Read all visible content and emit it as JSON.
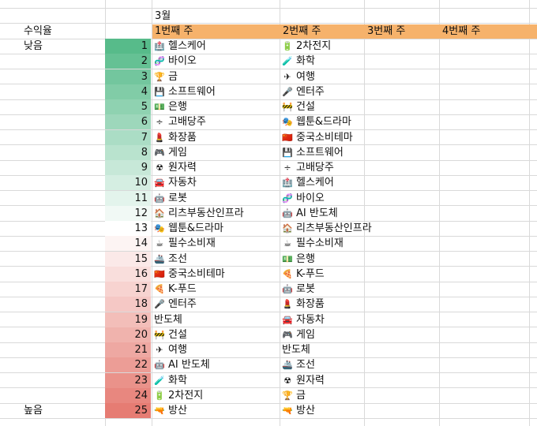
{
  "month": "3월",
  "left_label": "수익율",
  "low_label": "낮음",
  "high_label": "높음",
  "weeks": [
    "1번째 주",
    "2번째 주",
    "3번째 주",
    "4번째 주"
  ],
  "heat_colors": {
    "low": "#57bb8a",
    "mid": "#ffffff",
    "high": "#e67c73"
  },
  "rows": [
    {
      "rank": "1",
      "w1": "헬스케어",
      "w1_icon": "🏥",
      "w2": "2차전지",
      "w2_icon": "🔋"
    },
    {
      "rank": "2",
      "w1": "바이오",
      "w1_icon": "🧬",
      "w2": "화학",
      "w2_icon": "🧪"
    },
    {
      "rank": "3",
      "w1": "금",
      "w1_icon": "🏆",
      "w2": "여행",
      "w2_icon": "✈"
    },
    {
      "rank": "4",
      "w1": "소프트웨어",
      "w1_icon": "💾",
      "w2": "엔터주",
      "w2_icon": "🎤"
    },
    {
      "rank": "5",
      "w1": "은행",
      "w1_icon": "💵",
      "w2": "건설",
      "w2_icon": "🚧"
    },
    {
      "rank": "6",
      "w1": "고배당주",
      "w1_icon": "÷",
      "w2": "웹툰&드라마",
      "w2_icon": "🎭"
    },
    {
      "rank": "7",
      "w1": "화장품",
      "w1_icon": "💄",
      "w2": "중국소비테마",
      "w2_icon": "🇨🇳"
    },
    {
      "rank": "8",
      "w1": "게임",
      "w1_icon": "🎮",
      "w2": "소프트웨어",
      "w2_icon": "💾"
    },
    {
      "rank": "9",
      "w1": "원자력",
      "w1_icon": "☢",
      "w2": "고배당주",
      "w2_icon": "÷"
    },
    {
      "rank": "10",
      "w1": "자동차",
      "w1_icon": "🚘",
      "w2": "헬스케어",
      "w2_icon": "🏥"
    },
    {
      "rank": "11",
      "w1": "로봇",
      "w1_icon": "🤖",
      "w2": "바이오",
      "w2_icon": "🧬"
    },
    {
      "rank": "12",
      "w1": "리츠부동산인프라",
      "w1_icon": "🏠",
      "w2": "AI 반도체",
      "w2_icon": "🤖"
    },
    {
      "rank": "13",
      "w1": "웹툰&드라마",
      "w1_icon": "🎭",
      "w2": "리츠부동산인프라",
      "w2_icon": "🏠"
    },
    {
      "rank": "14",
      "w1": "필수소비재",
      "w1_icon": "☕",
      "w2": "필수소비재",
      "w2_icon": "☕"
    },
    {
      "rank": "15",
      "w1": "조선",
      "w1_icon": "🚢",
      "w2": "은행",
      "w2_icon": "💵"
    },
    {
      "rank": "16",
      "w1": "중국소비테마",
      "w1_icon": "🇨🇳",
      "w2": "K-푸드",
      "w2_icon": "🍕"
    },
    {
      "rank": "17",
      "w1": "K-푸드",
      "w1_icon": "🍕",
      "w2": "로봇",
      "w2_icon": "🤖"
    },
    {
      "rank": "18",
      "w1": "엔터주",
      "w1_icon": "🎤",
      "w2": "화장품",
      "w2_icon": "💄"
    },
    {
      "rank": "19",
      "w1": "반도체",
      "w1_icon": "",
      "w2": "자동차",
      "w2_icon": "🚘"
    },
    {
      "rank": "20",
      "w1": "건설",
      "w1_icon": "🚧",
      "w2": "게임",
      "w2_icon": "🎮"
    },
    {
      "rank": "21",
      "w1": "여행",
      "w1_icon": "✈",
      "w2": "반도체",
      "w2_icon": ""
    },
    {
      "rank": "22",
      "w1": "AI 반도체",
      "w1_icon": "🤖",
      "w2": "조선",
      "w2_icon": "🚢"
    },
    {
      "rank": "23",
      "w1": "화학",
      "w1_icon": "🧪",
      "w2": "원자력",
      "w2_icon": "☢"
    },
    {
      "rank": "24",
      "w1": "2차전지",
      "w1_icon": "🔋",
      "w2": "금",
      "w2_icon": "🏆"
    },
    {
      "rank": "25",
      "w1": "방산",
      "w1_icon": "🔫",
      "w2": "방산",
      "w2_icon": "🔫"
    }
  ]
}
